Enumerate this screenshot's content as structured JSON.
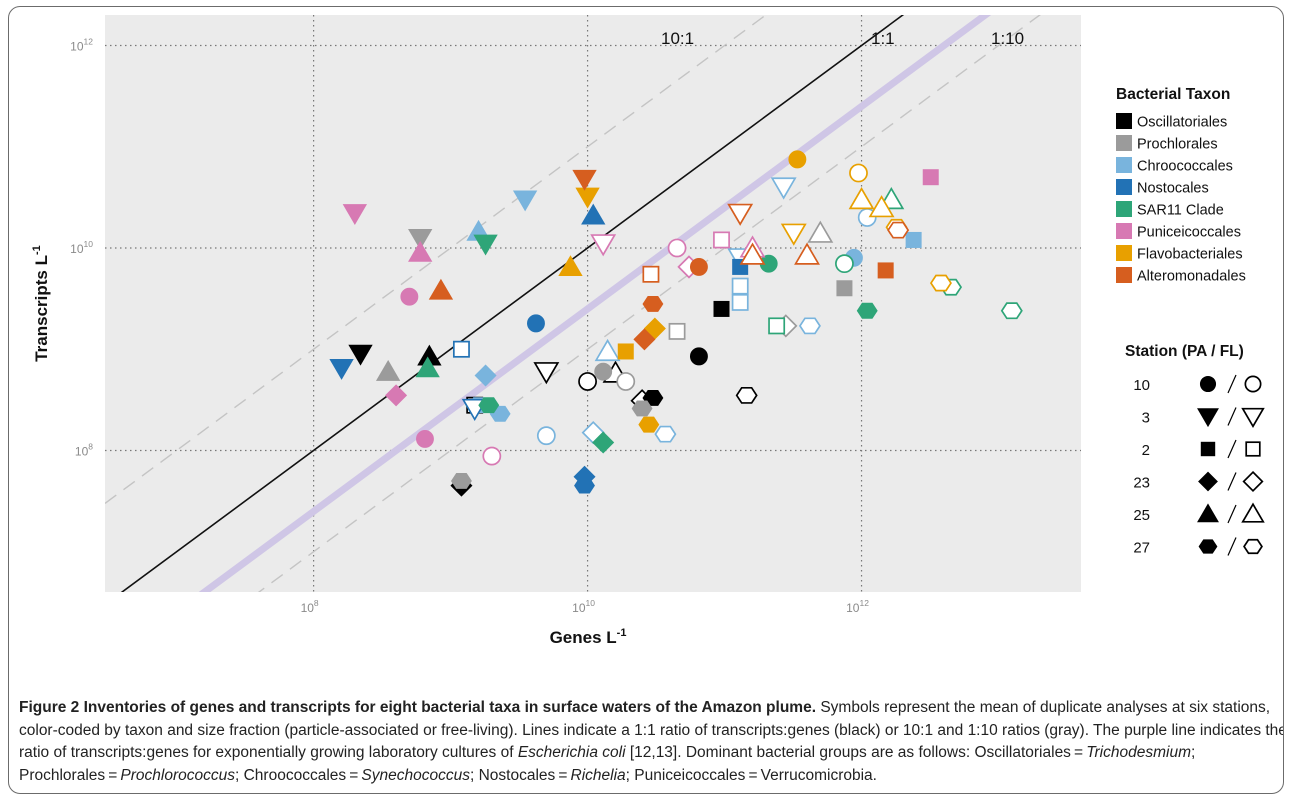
{
  "chart_data": {
    "type": "scatter",
    "title": "",
    "xlabel": "Genes L",
    "xlabel_sup": "-1",
    "ylabel": "Transcripts L",
    "ylabel_sup": "-1",
    "x_scale": "log10",
    "y_scale": "log10",
    "xlim": [
      3000000.0,
      40000000000000.0
    ],
    "ylim": [
      4000000.0,
      2000000000000.0
    ],
    "x_ticks": [
      {
        "value": 100000000.0,
        "exp": "8"
      },
      {
        "value": 10000000000.0,
        "exp": "10"
      },
      {
        "value": 1000000000000.0,
        "exp": "12"
      }
    ],
    "y_ticks": [
      {
        "value": 100000000.0,
        "exp": "8"
      },
      {
        "value": 10000000000.0,
        "exp": "10"
      },
      {
        "value": 1000000000000.0,
        "exp": "12"
      }
    ],
    "tick_base": "10",
    "grid": "dotted at major ticks",
    "background": "#ebebeb",
    "reference_lines": [
      {
        "ratio": 10,
        "label": "10:1",
        "style": "dashed",
        "color": "#c4c4c4"
      },
      {
        "ratio": 1,
        "label": "1:1",
        "style": "solid",
        "color": "#111111"
      },
      {
        "ratio": 0.1,
        "label": "1:10",
        "style": "dashed",
        "color": "#c4c4c4"
      },
      {
        "ratio": 0.25,
        "label": "",
        "style": "thick",
        "color": "#cfc6e6"
      }
    ],
    "taxa": [
      {
        "key": "osc",
        "name": "Oscillatoriales",
        "color": "#000000"
      },
      {
        "key": "pro",
        "name": "Prochlorales",
        "color": "#9b9b9b"
      },
      {
        "key": "chr",
        "name": "Chroococcales",
        "color": "#79b4dd"
      },
      {
        "key": "nos",
        "name": "Nostocales",
        "color": "#2272b5"
      },
      {
        "key": "sar",
        "name": "SAR11 Clade",
        "color": "#2ea578"
      },
      {
        "key": "pun",
        "name": "Puniceicoccales",
        "color": "#d779b3"
      },
      {
        "key": "fla",
        "name": "Flavobacteriales",
        "color": "#e8a000"
      },
      {
        "key": "alt",
        "name": "Alteromonadales",
        "color": "#d65e1f"
      }
    ],
    "legend_taxon_title": "Bacterial Taxon",
    "legend_station_title": "Station (PA / FL)",
    "stations": [
      {
        "label": "10",
        "shape": "circle"
      },
      {
        "label": "3",
        "shape": "triangle-down"
      },
      {
        "label": "2",
        "shape": "square"
      },
      {
        "label": "23",
        "shape": "diamond"
      },
      {
        "label": "25",
        "shape": "triangle-up"
      },
      {
        "label": "27",
        "shape": "hexagon"
      }
    ],
    "points": [
      {
        "taxon": "osc",
        "shape": "triangle-down",
        "fill": true,
        "x": 220000000.0,
        "y": 900000000.0
      },
      {
        "taxon": "osc",
        "shape": "triangle-up",
        "fill": true,
        "x": 700000000.0,
        "y": 850000000.0
      },
      {
        "taxon": "osc",
        "shape": "diamond",
        "fill": true,
        "x": 1200000000.0,
        "y": 45000000.0
      },
      {
        "taxon": "osc",
        "shape": "square",
        "fill": false,
        "x": 1500000000.0,
        "y": 280000000.0
      },
      {
        "taxon": "osc",
        "shape": "circle",
        "fill": false,
        "x": 10000000000.0,
        "y": 480000000.0
      },
      {
        "taxon": "osc",
        "shape": "triangle-up",
        "fill": false,
        "x": 16000000000.0,
        "y": 580000000.0
      },
      {
        "taxon": "osc",
        "shape": "diamond",
        "fill": false,
        "x": 25000000000.0,
        "y": 310000000.0
      },
      {
        "taxon": "osc",
        "shape": "hexagon",
        "fill": true,
        "x": 30000000000.0,
        "y": 330000000.0
      },
      {
        "taxon": "osc",
        "shape": "circle",
        "fill": true,
        "x": 65000000000.0,
        "y": 850000000.0
      },
      {
        "taxon": "osc",
        "shape": "square",
        "fill": true,
        "x": 95000000000.0,
        "y": 2500000000.0
      },
      {
        "taxon": "osc",
        "shape": "hexagon",
        "fill": false,
        "x": 145000000000.0,
        "y": 350000000.0
      },
      {
        "taxon": "osc",
        "shape": "triangle-down",
        "fill": false,
        "x": 5000000000.0,
        "y": 600000000.0
      },
      {
        "taxon": "pro",
        "shape": "triangle-up",
        "fill": true,
        "x": 350000000.0,
        "y": 600000000.0
      },
      {
        "taxon": "pro",
        "shape": "triangle-down",
        "fill": true,
        "x": 600000000.0,
        "y": 12500000000.0
      },
      {
        "taxon": "pro",
        "shape": "hexagon",
        "fill": true,
        "x": 1200000000.0,
        "y": 50000000.0
      },
      {
        "taxon": "pro",
        "shape": "circle",
        "fill": true,
        "x": 13000000000.0,
        "y": 600000000.0
      },
      {
        "taxon": "pro",
        "shape": "hexagon",
        "fill": true,
        "x": 25000000000.0,
        "y": 260000000.0
      },
      {
        "taxon": "pro",
        "shape": "circle",
        "fill": false,
        "x": 19000000000.0,
        "y": 480000000.0
      },
      {
        "taxon": "pro",
        "shape": "square",
        "fill": false,
        "x": 45000000000.0,
        "y": 1500000000.0
      },
      {
        "taxon": "pro",
        "shape": "diamond",
        "fill": false,
        "x": 280000000000.0,
        "y": 1700000000.0
      },
      {
        "taxon": "pro",
        "shape": "triangle-up",
        "fill": false,
        "x": 500000000000.0,
        "y": 14000000000.0
      },
      {
        "taxon": "pro",
        "shape": "square",
        "fill": true,
        "x": 750000000000.0,
        "y": 4000000000.0
      },
      {
        "taxon": "chr",
        "shape": "triangle-up",
        "fill": true,
        "x": 1600000000.0,
        "y": 14500000000.0
      },
      {
        "taxon": "chr",
        "shape": "triangle-down",
        "fill": true,
        "x": 3500000000.0,
        "y": 30000000000.0
      },
      {
        "taxon": "chr",
        "shape": "diamond",
        "fill": true,
        "x": 1800000000.0,
        "y": 550000000.0
      },
      {
        "taxon": "chr",
        "shape": "hexagon",
        "fill": true,
        "x": 2300000000.0,
        "y": 230000000.0
      },
      {
        "taxon": "chr",
        "shape": "hexagon",
        "fill": true,
        "x": 1600000000.0,
        "y": 280000000.0
      },
      {
        "taxon": "chr",
        "shape": "circle",
        "fill": false,
        "x": 5000000000.0,
        "y": 140000000.0
      },
      {
        "taxon": "chr",
        "shape": "diamond",
        "fill": false,
        "x": 11000000000.0,
        "y": 150000000.0
      },
      {
        "taxon": "chr",
        "shape": "triangle-up",
        "fill": false,
        "x": 14000000000.0,
        "y": 950000000.0
      },
      {
        "taxon": "chr",
        "shape": "hexagon",
        "fill": false,
        "x": 37000000000.0,
        "y": 145000000.0
      },
      {
        "taxon": "chr",
        "shape": "square",
        "fill": false,
        "x": 130000000000.0,
        "y": 4200000000.0
      },
      {
        "taxon": "chr",
        "shape": "triangle-down",
        "fill": false,
        "x": 130000000000.0,
        "y": 8000000000.0
      },
      {
        "taxon": "chr",
        "shape": "triangle-down",
        "fill": false,
        "x": 270000000000.0,
        "y": 40000000000.0
      },
      {
        "taxon": "chr",
        "shape": "hexagon",
        "fill": false,
        "x": 420000000000.0,
        "y": 1700000000.0
      },
      {
        "taxon": "chr",
        "shape": "circle",
        "fill": true,
        "x": 880000000000.0,
        "y": 8000000000.0
      },
      {
        "taxon": "chr",
        "shape": "circle",
        "fill": false,
        "x": 1100000000000.0,
        "y": 20000000000.0
      },
      {
        "taxon": "chr",
        "shape": "square",
        "fill": true,
        "x": 2400000000000.0,
        "y": 12000000000.0
      },
      {
        "taxon": "chr",
        "shape": "square",
        "fill": false,
        "x": 130000000000.0,
        "y": 2900000000.0
      },
      {
        "taxon": "nos",
        "shape": "triangle-down",
        "fill": true,
        "x": 160000000.0,
        "y": 650000000.0
      },
      {
        "taxon": "nos",
        "shape": "square",
        "fill": false,
        "x": 1200000000.0,
        "y": 1000000000.0
      },
      {
        "taxon": "nos",
        "shape": "circle",
        "fill": true,
        "x": 4200000000.0,
        "y": 1800000000.0
      },
      {
        "taxon": "nos",
        "shape": "triangle-up",
        "fill": true,
        "x": 11000000000.0,
        "y": 21000000000.0
      },
      {
        "taxon": "nos",
        "shape": "diamond",
        "fill": true,
        "x": 9500000000.0,
        "y": 55000000.0
      },
      {
        "taxon": "nos",
        "shape": "hexagon",
        "fill": true,
        "x": 9500000000.0,
        "y": 45000000.0
      },
      {
        "taxon": "nos",
        "shape": "square",
        "fill": true,
        "x": 130000000000.0,
        "y": 6500000000.0
      },
      {
        "taxon": "nos",
        "shape": "triangle-down",
        "fill": false,
        "x": 1500000000.0,
        "y": 260000000.0
      },
      {
        "taxon": "sar",
        "shape": "triangle-down",
        "fill": true,
        "x": 1800000000.0,
        "y": 11000000000.0
      },
      {
        "taxon": "sar",
        "shape": "triangle-up",
        "fill": true,
        "x": 680000000.0,
        "y": 650000000.0
      },
      {
        "taxon": "sar",
        "shape": "hexagon",
        "fill": true,
        "x": 1900000000.0,
        "y": 280000000.0
      },
      {
        "taxon": "sar",
        "shape": "diamond",
        "fill": true,
        "x": 13000000000.0,
        "y": 120000000.0
      },
      {
        "taxon": "sar",
        "shape": "circle",
        "fill": true,
        "x": 210000000000.0,
        "y": 7000000000.0
      },
      {
        "taxon": "sar",
        "shape": "square",
        "fill": false,
        "x": 240000000000.0,
        "y": 1700000000.0
      },
      {
        "taxon": "sar",
        "shape": "circle",
        "fill": false,
        "x": 750000000000.0,
        "y": 7000000000.0
      },
      {
        "taxon": "sar",
        "shape": "triangle-up",
        "fill": false,
        "x": 1650000000000.0,
        "y": 30000000000.0
      },
      {
        "taxon": "sar",
        "shape": "hexagon",
        "fill": true,
        "x": 1100000000000.0,
        "y": 2400000000.0
      },
      {
        "taxon": "sar",
        "shape": "hexagon",
        "fill": false,
        "x": 4500000000000.0,
        "y": 4100000000.0
      },
      {
        "taxon": "sar",
        "shape": "hexagon",
        "fill": false,
        "x": 12500000000000.0,
        "y": 2400000000.0
      },
      {
        "taxon": "pun",
        "shape": "triangle-down",
        "fill": true,
        "x": 200000000.0,
        "y": 22000000000.0
      },
      {
        "taxon": "pun",
        "shape": "triangle-up",
        "fill": true,
        "x": 600000000.0,
        "y": 9000000000.0
      },
      {
        "taxon": "pun",
        "shape": "circle",
        "fill": true,
        "x": 500000000.0,
        "y": 3300000000.0
      },
      {
        "taxon": "pun",
        "shape": "diamond",
        "fill": true,
        "x": 400000000.0,
        "y": 350000000.0
      },
      {
        "taxon": "pun",
        "shape": "circle",
        "fill": true,
        "x": 650000000.0,
        "y": 130000000.0
      },
      {
        "taxon": "pun",
        "shape": "circle",
        "fill": false,
        "x": 2000000000.0,
        "y": 88000000.0
      },
      {
        "taxon": "pun",
        "shape": "triangle-down",
        "fill": false,
        "x": 13000000000.0,
        "y": 11000000000.0
      },
      {
        "taxon": "pun",
        "shape": "circle",
        "fill": false,
        "x": 45000000000.0,
        "y": 10000000000.0
      },
      {
        "taxon": "pun",
        "shape": "diamond",
        "fill": false,
        "x": 55000000000.0,
        "y": 6500000000.0
      },
      {
        "taxon": "pun",
        "shape": "square",
        "fill": false,
        "x": 95000000000.0,
        "y": 12000000000.0
      },
      {
        "taxon": "pun",
        "shape": "triangle-up",
        "fill": false,
        "x": 160000000000.0,
        "y": 10000000000.0
      },
      {
        "taxon": "pun",
        "shape": "square",
        "fill": true,
        "x": 3200000000000.0,
        "y": 50000000000.0
      },
      {
        "taxon": "fla",
        "shape": "triangle-up",
        "fill": true,
        "x": 7500000000.0,
        "y": 6500000000.0
      },
      {
        "taxon": "fla",
        "shape": "triangle-down",
        "fill": true,
        "x": 10000000000.0,
        "y": 32000000000.0
      },
      {
        "taxon": "fla",
        "shape": "square",
        "fill": true,
        "x": 19000000000.0,
        "y": 950000000.0
      },
      {
        "taxon": "fla",
        "shape": "diamond",
        "fill": true,
        "x": 31000000000.0,
        "y": 1600000000.0
      },
      {
        "taxon": "fla",
        "shape": "hexagon",
        "fill": true,
        "x": 28000000000.0,
        "y": 180000000.0
      },
      {
        "taxon": "fla",
        "shape": "circle",
        "fill": true,
        "x": 340000000000.0,
        "y": 75000000000.0
      },
      {
        "taxon": "fla",
        "shape": "triangle-down",
        "fill": false,
        "x": 320000000000.0,
        "y": 14000000000.0
      },
      {
        "taxon": "fla",
        "shape": "circle",
        "fill": false,
        "x": 950000000000.0,
        "y": 55000000000.0
      },
      {
        "taxon": "fla",
        "shape": "triangle-up",
        "fill": false,
        "x": 1000000000000.0,
        "y": 30000000000.0
      },
      {
        "taxon": "fla",
        "shape": "triangle-up",
        "fill": false,
        "x": 1400000000000.0,
        "y": 25000000000.0
      },
      {
        "taxon": "fla",
        "shape": "hexagon",
        "fill": false,
        "x": 1800000000000.0,
        "y": 16000000000.0
      },
      {
        "taxon": "fla",
        "shape": "hexagon",
        "fill": false,
        "x": 3800000000000.0,
        "y": 4500000000.0
      },
      {
        "taxon": "alt",
        "shape": "triangle-down",
        "fill": true,
        "x": 9500000000.0,
        "y": 48000000000.0
      },
      {
        "taxon": "alt",
        "shape": "triangle-up",
        "fill": true,
        "x": 850000000.0,
        "y": 3800000000.0
      },
      {
        "taxon": "alt",
        "shape": "diamond",
        "fill": true,
        "x": 26000000000.0,
        "y": 1250000000.0
      },
      {
        "taxon": "alt",
        "shape": "hexagon",
        "fill": true,
        "x": 30000000000.0,
        "y": 2800000000.0
      },
      {
        "taxon": "alt",
        "shape": "circle",
        "fill": true,
        "x": 65000000000.0,
        "y": 6500000000.0
      },
      {
        "taxon": "alt",
        "shape": "square",
        "fill": false,
        "x": 29000000000.0,
        "y": 5500000000.0
      },
      {
        "taxon": "alt",
        "shape": "triangle-down",
        "fill": false,
        "x": 130000000000.0,
        "y": 22000000000.0
      },
      {
        "taxon": "alt",
        "shape": "triangle-up",
        "fill": false,
        "x": 160000000000.0,
        "y": 8500000000.0
      },
      {
        "taxon": "alt",
        "shape": "triangle-up",
        "fill": false,
        "x": 400000000000.0,
        "y": 8500000000.0
      },
      {
        "taxon": "alt",
        "shape": "square",
        "fill": true,
        "x": 1500000000000.0,
        "y": 6000000000.0
      },
      {
        "taxon": "alt",
        "shape": "hexagon",
        "fill": false,
        "x": 1850000000000.0,
        "y": 15000000000.0
      }
    ]
  },
  "caption": {
    "title": "Figure 2 Inventories of genes and transcripts for eight bacterial taxa in surface waters of the Amazon plume.",
    "text1": " Symbols represent the mean of duplicate analyses at six stations, color-coded by taxon and size fraction (particle-associated or free-living). Lines indicate a 1:1 ratio of transcripts:genes (black) or 10:1 and 1:10 ratios (gray). The purple line indicates the ratio of transcripts:genes for exponentially growing laboratory cultures of ",
    "text1_italic": "Escherichia coli",
    "text2": " [12,13]. Dominant bacterial groups are as follows: Oscillatoriales = ",
    "g1": "Trichodesmium",
    "s1": "; Prochlorales = ",
    "g2": "Prochlorococcus",
    "s2": "; Chroococcales = ",
    "g3": "Synechococcus",
    "s3": "; Nostocales = ",
    "g4": "Richelia",
    "s4": "; Puniceicoccales = Verrucomicrobia."
  }
}
